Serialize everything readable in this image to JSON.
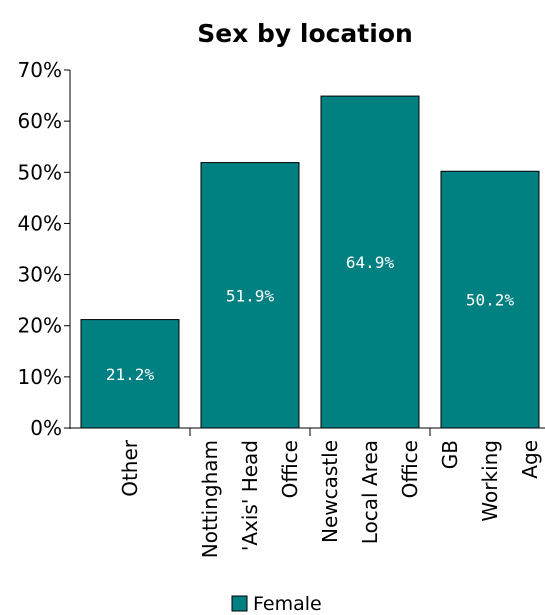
{
  "chart_data": {
    "type": "bar",
    "title": "Sex by location",
    "categories": [
      [
        "Other"
      ],
      [
        "Nottingham",
        "'Axis' Head",
        "Office"
      ],
      [
        "Newcastle",
        "Local Area",
        "Office"
      ],
      [
        "GB",
        "Working",
        "Age"
      ]
    ],
    "series": [
      {
        "name": "Female",
        "color": "#008080",
        "values": [
          21.2,
          51.9,
          64.9,
          50.2
        ],
        "data_labels": [
          "21.2%",
          "51.9%",
          "64.9%",
          "50.2%"
        ]
      }
    ],
    "y_ticks": [
      "0%",
      "10%",
      "20%",
      "30%",
      "40%",
      "50%",
      "60%",
      "70%"
    ],
    "ylim": [
      0,
      70
    ],
    "grid": false,
    "legend_position": "bottom"
  }
}
